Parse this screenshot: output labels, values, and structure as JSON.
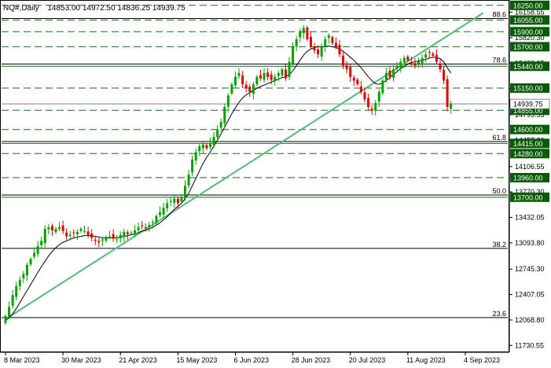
{
  "header": {
    "symbol_timeframe": "NQ#,Daily",
    "ohlc": "14853.00 14972.50 14836.25 14939.75"
  },
  "chart_data": {
    "type": "candlestick",
    "title": "NQ#,Daily",
    "ylim": [
      11650,
      16300
    ],
    "xlim": [
      0,
      150
    ],
    "y_ticks": [
      "16158.55",
      "15820.30",
      "15482.05",
      "15143.80",
      "14795.55",
      "14457.30",
      "14106.55",
      "13770.30",
      "13432.05",
      "13093.80",
      "12745.30",
      "12407.05",
      "12068.80",
      "11730.55"
    ],
    "x_ticks": [
      {
        "label": "8 Mar 2023",
        "index": 0
      },
      {
        "label": "30 Mar 2023",
        "index": 16
      },
      {
        "label": "21 Apr 2023",
        "index": 32
      },
      {
        "label": "15 May 2023",
        "index": 48
      },
      {
        "label": "6 Jun 2023",
        "index": 64
      },
      {
        "label": "28 Jun 2023",
        "index": 80
      },
      {
        "label": "20 Jul 2023",
        "index": 96
      },
      {
        "label": "11 Aug 2023",
        "index": 112
      },
      {
        "label": "4 Sep 2023",
        "index": 128
      }
    ],
    "close_series": [
      12120,
      12240,
      12400,
      12520,
      12600,
      12680,
      12800,
      12880,
      12960,
      13050,
      13120,
      13280,
      13300,
      13260,
      13280,
      13300,
      13250,
      13180,
      13200,
      13220,
      13240,
      13280,
      13250,
      13200,
      13160,
      13120,
      13100,
      13140,
      13170,
      13180,
      13150,
      13140,
      13200,
      13240,
      13210,
      13230,
      13260,
      13300,
      13320,
      13300,
      13330,
      13370,
      13450,
      13500,
      13560,
      13620,
      13650,
      13680,
      13620,
      13700,
      13850,
      14000,
      14200,
      14300,
      14380,
      14400,
      14350,
      14420,
      14500,
      14600,
      14700,
      14900,
      15050,
      15200,
      15300,
      15350,
      15200,
      15150,
      15100,
      15200,
      15300,
      15280,
      15350,
      15300,
      15260,
      15300,
      15350,
      15400,
      15280,
      15500,
      15700,
      15800,
      15900,
      15950,
      15800,
      15700,
      15650,
      15600,
      15700,
      15800,
      15850,
      15750,
      15700,
      15600,
      15450,
      15400,
      15300,
      15250,
      15200,
      15100,
      15000,
      14900,
      14850,
      14950,
      15100,
      15250,
      15350,
      15300,
      15400,
      15450,
      15500,
      15550,
      15520,
      15480,
      15450,
      15500,
      15550,
      15600,
      15620,
      15580,
      15500,
      15400,
      15250,
      14900,
      14939.75
    ],
    "moving_average_series": [
      12060,
      12100,
      12150,
      12220,
      12300,
      12380,
      12460,
      12540,
      12620,
      12700,
      12780,
      12850,
      12920,
      12980,
      13030,
      13070,
      13100,
      13120,
      13140,
      13160,
      13170,
      13180,
      13190,
      13190,
      13190,
      13180,
      13170,
      13160,
      13160,
      13160,
      13160,
      13160,
      13170,
      13180,
      13190,
      13200,
      13210,
      13230,
      13250,
      13260,
      13280,
      13300,
      13330,
      13360,
      13400,
      13440,
      13490,
      13540,
      13580,
      13620,
      13680,
      13750,
      13850,
      13950,
      14050,
      14150,
      14230,
      14300,
      14380,
      14460,
      14540,
      14630,
      14720,
      14810,
      14890,
      14960,
      15020,
      15060,
      15090,
      15120,
      15150,
      15170,
      15190,
      15210,
      15230,
      15250,
      15270,
      15290,
      15300,
      15330,
      15380,
      15450,
      15520,
      15590,
      15640,
      15670,
      15690,
      15700,
      15700,
      15700,
      15710,
      15700,
      15690,
      15670,
      15640,
      15600,
      15560,
      15520,
      15470,
      15420,
      15360,
      15300,
      15250,
      15210,
      15200,
      15220,
      15250,
      15290,
      15330,
      15370,
      15410,
      15440,
      15470,
      15490,
      15500,
      15510,
      15520,
      15530,
      15550,
      15560,
      15560,
      15540,
      15500,
      15420,
      15350
    ],
    "trendline": {
      "from": [
        0,
        12080
      ],
      "to": [
        133,
        16150
      ]
    },
    "horizontal_levels": [
      {
        "label": "16250.00",
        "value": 16250,
        "style": "dashed"
      },
      {
        "label": "16055.00",
        "value": 16055,
        "style": "dashed"
      },
      {
        "label": "15900.00",
        "value": 15900,
        "style": "dashed"
      },
      {
        "label": "15700.00",
        "value": 15700,
        "style": "dashed"
      },
      {
        "label": "15440.00",
        "value": 15440,
        "style": "solid"
      },
      {
        "label": "15150.00",
        "value": 15150,
        "style": "dashed"
      },
      {
        "label": "14855.00",
        "value": 14855,
        "style": "dashed"
      },
      {
        "label": "14600.00",
        "value": 14600,
        "style": "dashed"
      },
      {
        "label": "14415.00",
        "value": 14415,
        "style": "solid"
      },
      {
        "label": "14280.00",
        "value": 14280,
        "style": "dashed"
      },
      {
        "label": "13960.00",
        "value": 13960,
        "style": "dashed"
      },
      {
        "label": "13700.00",
        "value": 13700,
        "style": "solid"
      }
    ],
    "fib_levels": [
      {
        "label": "88.6",
        "value": 16075
      },
      {
        "label": "78.6",
        "value": 15470
      },
      {
        "label": "61.8",
        "value": 14440
      },
      {
        "label": "50.0",
        "value": 13730
      },
      {
        "label": "38.2",
        "value": 13020
      },
      {
        "label": "23.6",
        "value": 12100
      }
    ],
    "current_price": {
      "label": "14939.75",
      "value": 14939.75
    },
    "colors": {
      "up": "#00a000",
      "down": "#e00000",
      "level_line": "#1e6a1e",
      "tag_bg": "#0a5a0a",
      "trendline": "#55bb77",
      "moving_average": "#000000"
    }
  }
}
